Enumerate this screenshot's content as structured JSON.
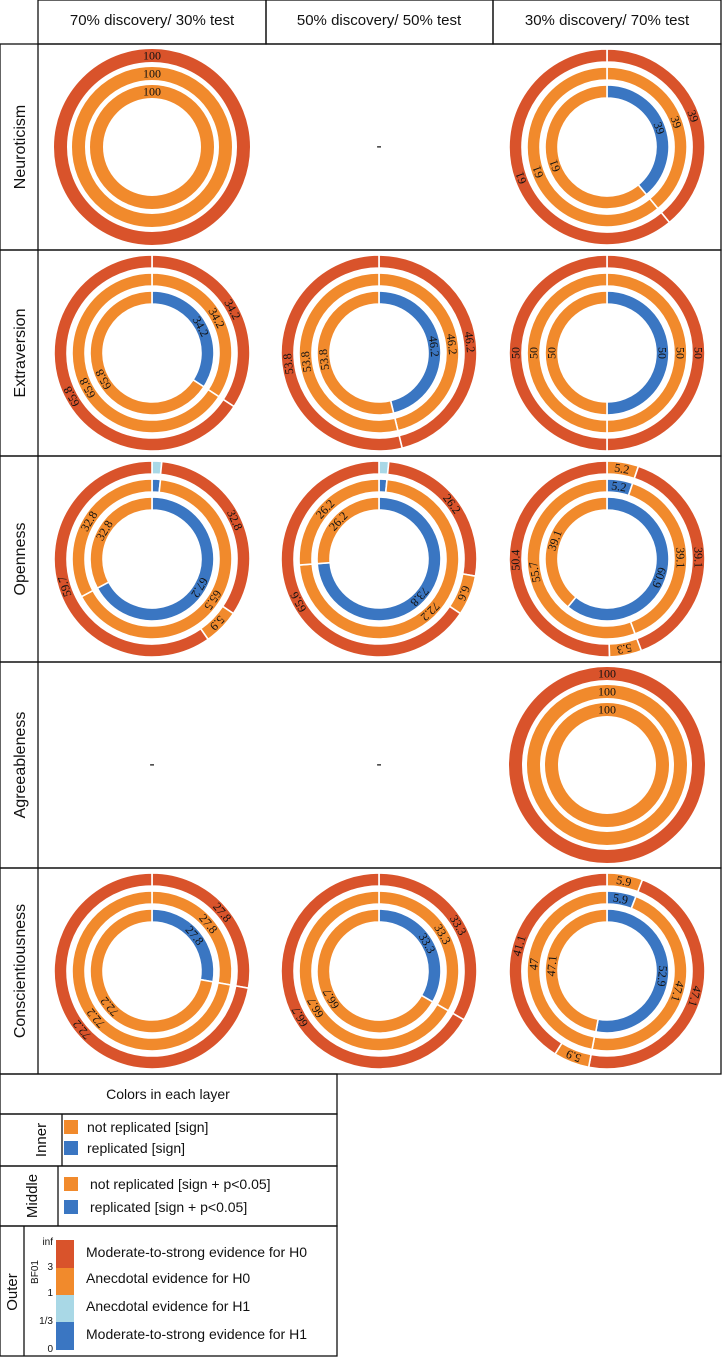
{
  "columns": [
    "70% discovery/ 30% test",
    "50% discovery/ 50% test",
    "30% discovery/ 70% test"
  ],
  "rows": [
    "Neuroticism",
    "Extraversion",
    "Openness",
    "Agreeableness",
    "Conscientiousness"
  ],
  "missing_label": "-",
  "colors": {
    "strong_h0": "#d9532b",
    "anecdotal_h0": "#f18a2c",
    "anecdotal_h1": "#a9d8e6",
    "strong_h1": "#3a76c2"
  },
  "chart_data": {
    "type": "nested-donut",
    "layers": [
      "inner",
      "middle",
      "outer"
    ],
    "cells": [
      {
        "row": "Neuroticism",
        "col": "70% discovery/ 30% test",
        "inner": [
          {
            "cat": "anecdotal_h0",
            "value": 100,
            "label": "100"
          }
        ],
        "middle": [
          {
            "cat": "anecdotal_h0",
            "value": 100,
            "label": "100"
          }
        ],
        "outer": [
          {
            "cat": "strong_h0",
            "value": 100,
            "label": "100"
          }
        ]
      },
      {
        "row": "Neuroticism",
        "col": "50% discovery/ 50% test",
        "missing": true
      },
      {
        "row": "Neuroticism",
        "col": "30% discovery/ 70% test",
        "inner": [
          {
            "cat": "strong_h1",
            "value": 39,
            "label": "39"
          },
          {
            "cat": "anecdotal_h0",
            "value": 61,
            "label": "61"
          }
        ],
        "middle": [
          {
            "cat": "anecdotal_h0",
            "value": 39,
            "label": "39"
          },
          {
            "cat": "anecdotal_h0",
            "value": 61,
            "label": "61"
          }
        ],
        "outer": [
          {
            "cat": "strong_h0",
            "value": 39,
            "label": "39"
          },
          {
            "cat": "strong_h0",
            "value": 61,
            "label": "61"
          }
        ]
      },
      {
        "row": "Extraversion",
        "col": "70% discovery/ 30% test",
        "inner": [
          {
            "cat": "strong_h1",
            "value": 34.2,
            "label": "34.2"
          },
          {
            "cat": "anecdotal_h0",
            "value": 65.8,
            "label": "65.8"
          }
        ],
        "middle": [
          {
            "cat": "anecdotal_h0",
            "value": 34.2,
            "label": "34.2"
          },
          {
            "cat": "anecdotal_h0",
            "value": 65.8,
            "label": "65.8"
          }
        ],
        "outer": [
          {
            "cat": "strong_h0",
            "value": 34.2,
            "label": "34.2"
          },
          {
            "cat": "strong_h0",
            "value": 65.8,
            "label": "65.8"
          }
        ]
      },
      {
        "row": "Extraversion",
        "col": "50% discovery/ 50% test",
        "inner": [
          {
            "cat": "strong_h1",
            "value": 46.2,
            "label": "46.2"
          },
          {
            "cat": "anecdotal_h0",
            "value": 53.8,
            "label": "53.8"
          }
        ],
        "middle": [
          {
            "cat": "anecdotal_h0",
            "value": 46.2,
            "label": "46.2"
          },
          {
            "cat": "anecdotal_h0",
            "value": 53.8,
            "label": "53.8"
          }
        ],
        "outer": [
          {
            "cat": "strong_h0",
            "value": 46.2,
            "label": "46.2"
          },
          {
            "cat": "strong_h0",
            "value": 53.8,
            "label": "53.8"
          }
        ]
      },
      {
        "row": "Extraversion",
        "col": "30% discovery/ 70% test",
        "inner": [
          {
            "cat": "strong_h1",
            "value": 50,
            "label": "50"
          },
          {
            "cat": "anecdotal_h0",
            "value": 50,
            "label": "50"
          }
        ],
        "middle": [
          {
            "cat": "anecdotal_h0",
            "value": 50,
            "label": "50"
          },
          {
            "cat": "anecdotal_h0",
            "value": 50,
            "label": "50"
          }
        ],
        "outer": [
          {
            "cat": "strong_h0",
            "value": 50,
            "label": "50"
          },
          {
            "cat": "strong_h0",
            "value": 50,
            "label": "50"
          }
        ]
      },
      {
        "row": "Openness",
        "col": "70% discovery/ 30% test",
        "inner": [
          {
            "cat": "strong_h1",
            "value": 67.2,
            "label": "67.2"
          },
          {
            "cat": "anecdotal_h0",
            "value": 32.8,
            "label": "32.8"
          }
        ],
        "middle": [
          {
            "cat": "strong_h1",
            "value": 1.7,
            "label": ""
          },
          {
            "cat": "anecdotal_h0",
            "value": 65.5,
            "label": "65.5"
          },
          {
            "cat": "anecdotal_h0",
            "value": 32.8,
            "label": "32.8"
          }
        ],
        "outer": [
          {
            "cat": "anecdotal_h1",
            "value": 1.6,
            "label": ""
          },
          {
            "cat": "strong_h0",
            "value": 32.8,
            "label": "32.8"
          },
          {
            "cat": "anecdotal_h0",
            "value": 5.9,
            "label": "5.9"
          },
          {
            "cat": "strong_h0",
            "value": 59.7,
            "label": "59.7"
          }
        ]
      },
      {
        "row": "Openness",
        "col": "50% discovery/ 50% test",
        "inner": [
          {
            "cat": "strong_h1",
            "value": 73.8,
            "label": "73.8"
          },
          {
            "cat": "anecdotal_h0",
            "value": 26.2,
            "label": "26.2"
          }
        ],
        "middle": [
          {
            "cat": "strong_h1",
            "value": 1.6,
            "label": ""
          },
          {
            "cat": "anecdotal_h0",
            "value": 72.2,
            "label": "72.2"
          },
          {
            "cat": "anecdotal_h0",
            "value": 26.2,
            "label": "26.2"
          }
        ],
        "outer": [
          {
            "cat": "anecdotal_h1",
            "value": 1.6,
            "label": ""
          },
          {
            "cat": "strong_h0",
            "value": 26.2,
            "label": "26.2"
          },
          {
            "cat": "anecdotal_h0",
            "value": 6.6,
            "label": "6.6"
          },
          {
            "cat": "strong_h0",
            "value": 65.6,
            "label": "65.6"
          }
        ]
      },
      {
        "row": "Openness",
        "col": "30% discovery/ 70% test",
        "inner": [
          {
            "cat": "strong_h1",
            "value": 60.9,
            "label": "60.9"
          },
          {
            "cat": "anecdotal_h0",
            "value": 39.1,
            "label": "39.1"
          }
        ],
        "middle": [
          {
            "cat": "strong_h1",
            "value": 5.2,
            "label": "5.2"
          },
          {
            "cat": "anecdotal_h0",
            "value": 39.1,
            "label": "39.1"
          },
          {
            "cat": "anecdotal_h0",
            "value": 55.7,
            "label": "55.7"
          }
        ],
        "outer": [
          {
            "cat": "anecdotal_h0",
            "value": 5.2,
            "label": "5.2"
          },
          {
            "cat": "strong_h0",
            "value": 39.1,
            "label": "39.1"
          },
          {
            "cat": "anecdotal_h0",
            "value": 5.3,
            "label": "5.3"
          },
          {
            "cat": "strong_h0",
            "value": 50.4,
            "label": "50.4"
          }
        ]
      },
      {
        "row": "Agreeableness",
        "col": "70% discovery/ 30% test",
        "missing": true
      },
      {
        "row": "Agreeableness",
        "col": "50% discovery/ 50% test",
        "missing": true
      },
      {
        "row": "Agreeableness",
        "col": "30% discovery/ 70% test",
        "inner": [
          {
            "cat": "anecdotal_h0",
            "value": 100,
            "label": "100"
          }
        ],
        "middle": [
          {
            "cat": "anecdotal_h0",
            "value": 100,
            "label": "100"
          }
        ],
        "outer": [
          {
            "cat": "strong_h0",
            "value": 100,
            "label": "100"
          }
        ]
      },
      {
        "row": "Conscientiousness",
        "col": "70% discovery/ 30% test",
        "inner": [
          {
            "cat": "strong_h1",
            "value": 27.8,
            "label": "27.8"
          },
          {
            "cat": "anecdotal_h0",
            "value": 72.2,
            "label": "72.2"
          }
        ],
        "middle": [
          {
            "cat": "anecdotal_h0",
            "value": 27.8,
            "label": "27.8"
          },
          {
            "cat": "anecdotal_h0",
            "value": 72.2,
            "label": "72.2"
          }
        ],
        "outer": [
          {
            "cat": "strong_h0",
            "value": 27.8,
            "label": "27.8"
          },
          {
            "cat": "strong_h0",
            "value": 72.2,
            "label": "72.2"
          }
        ]
      },
      {
        "row": "Conscientiousness",
        "col": "50% discovery/ 50% test",
        "inner": [
          {
            "cat": "strong_h1",
            "value": 33.3,
            "label": "33.3"
          },
          {
            "cat": "anecdotal_h0",
            "value": 66.7,
            "label": "66.7"
          }
        ],
        "middle": [
          {
            "cat": "anecdotal_h0",
            "value": 33.3,
            "label": "33.3"
          },
          {
            "cat": "anecdotal_h0",
            "value": 66.7,
            "label": "66.7"
          }
        ],
        "outer": [
          {
            "cat": "strong_h0",
            "value": 33.3,
            "label": "33.3"
          },
          {
            "cat": "strong_h0",
            "value": 66.7,
            "label": "66.7"
          }
        ]
      },
      {
        "row": "Conscientiousness",
        "col": "30% discovery/ 70% test",
        "inner": [
          {
            "cat": "strong_h1",
            "value": 52.9,
            "label": "52.9"
          },
          {
            "cat": "anecdotal_h0",
            "value": 47.1,
            "label": "47.1"
          }
        ],
        "middle": [
          {
            "cat": "strong_h1",
            "value": 5.9,
            "label": "5.9"
          },
          {
            "cat": "anecdotal_h0",
            "value": 47.1,
            "label": "47.1"
          },
          {
            "cat": "anecdotal_h0",
            "value": 47,
            "label": "47"
          }
        ],
        "outer": [
          {
            "cat": "anecdotal_h0",
            "value": 5.9,
            "label": "5.9"
          },
          {
            "cat": "strong_h0",
            "value": 47.1,
            "label": "47.1"
          },
          {
            "cat": "anecdotal_h0",
            "value": 5.9,
            "label": "5.9"
          },
          {
            "cat": "strong_h0",
            "value": 41.1,
            "label": "41.1"
          }
        ]
      }
    ]
  },
  "legend": {
    "title": "Colors in each layer",
    "inner": {
      "label": "Inner",
      "items": [
        {
          "cat": "anecdotal_h0",
          "text": "not replicated [sign]"
        },
        {
          "cat": "strong_h1",
          "text": "replicated [sign]"
        }
      ]
    },
    "middle": {
      "label": "Middle",
      "items": [
        {
          "cat": "anecdotal_h0",
          "text": "not replicated [sign + p<0.05]"
        },
        {
          "cat": "strong_h1",
          "text": "replicated [sign + p<0.05]"
        }
      ]
    },
    "outer": {
      "label": "Outer",
      "axis_label": "BF01",
      "ticks": [
        "inf",
        "3",
        "1",
        "1/3",
        "0"
      ],
      "items": [
        {
          "cat": "strong_h0",
          "text": "Moderate-to-strong evidence for H0"
        },
        {
          "cat": "anecdotal_h0",
          "text": "Anecdotal evidence for H0"
        },
        {
          "cat": "anecdotal_h1",
          "text": "Anecdotal evidence  for H1"
        },
        {
          "cat": "strong_h1",
          "text": "Moderate-to-strong evidence for H1"
        }
      ]
    }
  }
}
